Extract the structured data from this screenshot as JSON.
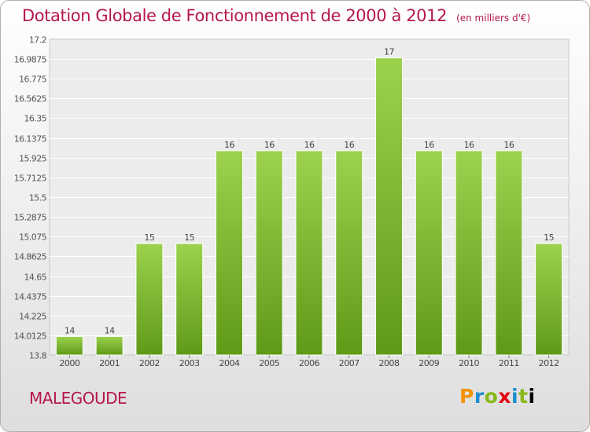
{
  "header": {
    "title": "Dotation Globale de Fonctionnement de 2000 à 2012",
    "subtitle": "(en milliers d'€)"
  },
  "footer": {
    "city": "MALEGOUDE",
    "logo": "Proxiti"
  },
  "colors": {
    "accent": "#b5174d",
    "bar_top": "#9cd24e",
    "bar_bottom": "#5f9a17"
  },
  "chart_data": {
    "type": "bar",
    "title": "Dotation Globale de Fonctionnement de 2000 à 2012",
    "subtitle": "(en milliers d'€)",
    "categories": [
      "2000",
      "2001",
      "2002",
      "2003",
      "2004",
      "2005",
      "2006",
      "2007",
      "2008",
      "2009",
      "2010",
      "2011",
      "2012"
    ],
    "values": [
      14,
      14,
      15,
      15,
      16,
      16,
      16,
      16,
      17,
      16,
      16,
      16,
      15
    ],
    "data_labels": [
      "14",
      "14",
      "15",
      "15",
      "16",
      "16",
      "16",
      "16",
      "17",
      "16",
      "16",
      "16",
      "15"
    ],
    "ylim": [
      13.8,
      17.2
    ],
    "yticks": [
      13.8,
      14.0125,
      14.225,
      14.4375,
      14.65,
      14.8625,
      15.075,
      15.2875,
      15.5,
      15.7125,
      15.925,
      16.1375,
      16.35,
      16.5625,
      16.775,
      16.9875,
      17.2
    ],
    "ytick_labels": [
      "13.8",
      "14.0125",
      "14.225",
      "14.4375",
      "14.65",
      "14.8625",
      "15.075",
      "15.2875",
      "15.5",
      "15.7125",
      "15.925",
      "16.1375",
      "16.35",
      "16.5625",
      "16.775",
      "16.9875",
      "17.2"
    ],
    "grid": true,
    "legend": "none"
  }
}
